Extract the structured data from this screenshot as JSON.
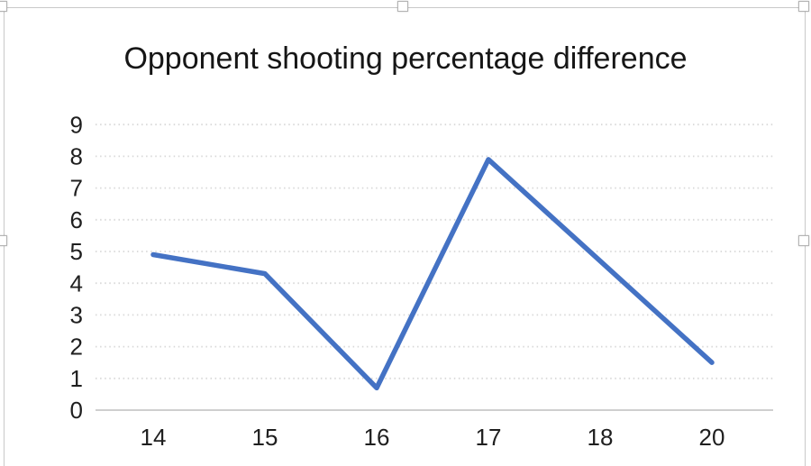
{
  "chart_data": {
    "type": "line",
    "title": "Opponent shooting percentage difference",
    "categories": [
      "14",
      "15",
      "16",
      "17",
      "18",
      "20"
    ],
    "series": [
      {
        "values": [
          4.9,
          4.3,
          0.7,
          7.9,
          null,
          1.5
        ]
      }
    ],
    "note": "no data point at category 18; line connects 17 to 20 straight through the gap",
    "xlabel": "",
    "ylabel": "",
    "ylim": [
      0,
      9
    ],
    "yticks": [
      0,
      1,
      2,
      3,
      4,
      5,
      6,
      7,
      8,
      9
    ],
    "grid": "horizontal dotted gridlines, solid baseline at 0",
    "legend": "none",
    "colors": {
      "line": "#4472C4",
      "gridline": "#D8D8D8",
      "axis_line": "#CFCFCF",
      "tick_text": "#1F1F1F",
      "title_text": "#161616"
    }
  },
  "selection": {
    "state": "chart object selected",
    "handles": [
      "top-left",
      "top-center",
      "top-right",
      "left-middle",
      "right-middle"
    ]
  }
}
